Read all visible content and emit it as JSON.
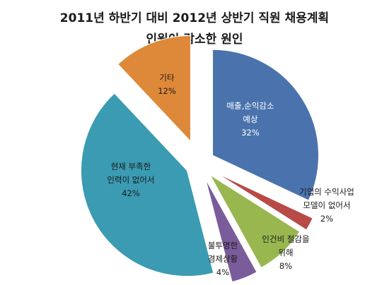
{
  "chart_data": {
    "type": "pie",
    "title_lines": [
      "2011년 하반기 대비 2012년 상반기 직원 채용계획",
      "인원이 감소한 원인"
    ],
    "slices": [
      {
        "label_lines": [
          "매출,순익감소",
          "예상"
        ],
        "value": 32,
        "pct": "32%",
        "color": "#4a73ad",
        "text_color": "#ffffff"
      },
      {
        "label_lines": [
          "기업의 수익사업",
          "모델이 없어서"
        ],
        "value": 2,
        "pct": "2%",
        "color": "#b84a47",
        "text_color": "#1a1a1a"
      },
      {
        "label_lines": [
          "인건비 절감을",
          "위해"
        ],
        "value": 8,
        "pct": "8%",
        "color": "#98b74f",
        "text_color": "#1a1a1a"
      },
      {
        "label_lines": [
          "불투명한",
          "경제상황"
        ],
        "value": 4,
        "pct": "4%",
        "color": "#7a5c9b",
        "text_color": "#1a1a1a"
      },
      {
        "label_lines": [
          "현재 부족한",
          "인력이 없어서"
        ],
        "value": 42,
        "pct": "42%",
        "color": "#3a9bb2",
        "text_color": "#1a1a1a"
      },
      {
        "label_lines": [
          "기타"
        ],
        "value": 12,
        "pct": "12%",
        "color": "#de8939",
        "text_color": "#1a1a1a"
      }
    ]
  }
}
